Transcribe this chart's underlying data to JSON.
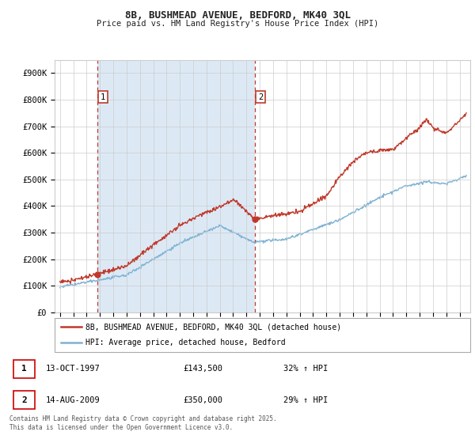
{
  "title1": "8B, BUSHMEAD AVENUE, BEDFORD, MK40 3QL",
  "title2": "Price paid vs. HM Land Registry's House Price Index (HPI)",
  "ylim": [
    0,
    950000
  ],
  "yticks": [
    0,
    100000,
    200000,
    300000,
    400000,
    500000,
    600000,
    700000,
    800000,
    900000
  ],
  "ytick_labels": [
    "£0",
    "£100K",
    "£200K",
    "£300K",
    "£400K",
    "£500K",
    "£600K",
    "£700K",
    "£800K",
    "£900K"
  ],
  "xlim_left": 1994.6,
  "xlim_right": 2025.8,
  "sale1_date": 1997.79,
  "sale1_price": 143500,
  "sale2_date": 2009.62,
  "sale2_price": 350000,
  "grid_color": "#cccccc",
  "bg_color": "#ffffff",
  "shade_color": "#dce9f5",
  "red_line_color": "#c0392b",
  "blue_line_color": "#7fb3d3",
  "dashed_line_color": "#c0392b",
  "legend1": "8B, BUSHMEAD AVENUE, BEDFORD, MK40 3QL (detached house)",
  "legend2": "HPI: Average price, detached house, Bedford",
  "footer": "Contains HM Land Registry data © Crown copyright and database right 2025.\nThis data is licensed under the Open Government Licence v3.0.",
  "table_row1_num": "1",
  "table_row1_date": "13-OCT-1997",
  "table_row1_price": "£143,500",
  "table_row1_hpi": "32% ↑ HPI",
  "table_row2_num": "2",
  "table_row2_date": "14-AUG-2009",
  "table_row2_price": "£350,000",
  "table_row2_hpi": "29% ↑ HPI"
}
